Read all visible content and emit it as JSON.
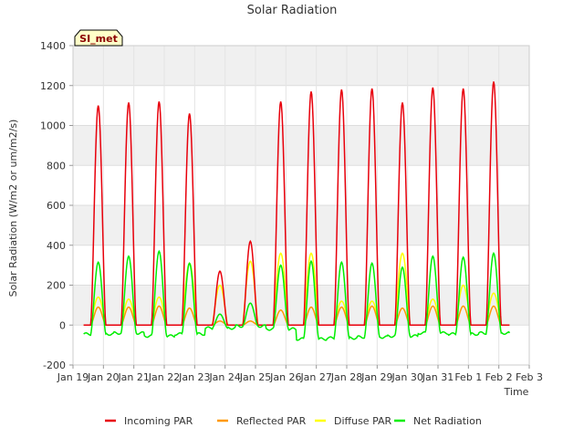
{
  "chart_data": {
    "type": "line",
    "title": "Solar Radiation",
    "xlabel": "Time",
    "ylabel": "Solar Radiation (W/m2 or um/m2/s)",
    "site_label": "SI_met",
    "ylim": [
      -200,
      1400
    ],
    "yticks": [
      -200,
      0,
      200,
      400,
      600,
      800,
      1000,
      1200,
      1400
    ],
    "xlim": [
      0,
      15
    ],
    "xticks": [
      "Jan 19",
      "Jan 20",
      "Jan 21",
      "Jan 22",
      "Jan 23",
      "Jan 24",
      "Jan 25",
      "Jan 26",
      "Jan 27",
      "Jan 28",
      "Jan 29",
      "Jan 30",
      "Jan 31",
      "Feb 1",
      "Feb 2",
      "Feb 3"
    ],
    "grid": true,
    "legend_position": "bottom",
    "days_start_offset": 0.35,
    "days": [
      {
        "incoming": 1100,
        "reflected": 90,
        "diffuse": 140,
        "net_peak": 315,
        "net_night": -45
      },
      {
        "incoming": 1115,
        "reflected": 90,
        "diffuse": 130,
        "net_peak": 345,
        "net_night": -40
      },
      {
        "incoming": 1120,
        "reflected": 95,
        "diffuse": 140,
        "net_peak": 370,
        "net_night": -55
      },
      {
        "incoming": 1060,
        "reflected": 85,
        "diffuse": 310,
        "net_peak": 310,
        "net_night": -45
      },
      {
        "incoming": 270,
        "reflected": 20,
        "diffuse": 200,
        "net_peak": 55,
        "net_night": -15
      },
      {
        "incoming": 420,
        "reflected": 20,
        "diffuse": 320,
        "net_peak": 110,
        "net_night": -5
      },
      {
        "incoming": 1120,
        "reflected": 75,
        "diffuse": 360,
        "net_peak": 300,
        "net_night": -20
      },
      {
        "incoming": 1170,
        "reflected": 90,
        "diffuse": 360,
        "net_peak": 320,
        "net_night": -70
      },
      {
        "incoming": 1180,
        "reflected": 90,
        "diffuse": 120,
        "net_peak": 315,
        "net_night": -65
      },
      {
        "incoming": 1185,
        "reflected": 95,
        "diffuse": 120,
        "net_peak": 310,
        "net_night": -60
      },
      {
        "incoming": 1115,
        "reflected": 85,
        "diffuse": 360,
        "net_peak": 290,
        "net_night": -55
      },
      {
        "incoming": 1190,
        "reflected": 95,
        "diffuse": 130,
        "net_peak": 345,
        "net_night": -40
      },
      {
        "incoming": 1185,
        "reflected": 95,
        "diffuse": 200,
        "net_peak": 340,
        "net_night": -45
      },
      {
        "incoming": 1220,
        "reflected": 95,
        "diffuse": 160,
        "net_peak": 360,
        "net_night": -40
      }
    ],
    "series": [
      {
        "name": "Incoming PAR",
        "key": "incoming",
        "color": "#e8000b"
      },
      {
        "name": "Reflected PAR",
        "key": "reflected",
        "color": "#ff9900"
      },
      {
        "name": "Diffuse PAR",
        "key": "diffuse",
        "color": "#ffff00"
      },
      {
        "name": "Net Radiation",
        "key": "net",
        "color": "#00ee00"
      }
    ]
  }
}
